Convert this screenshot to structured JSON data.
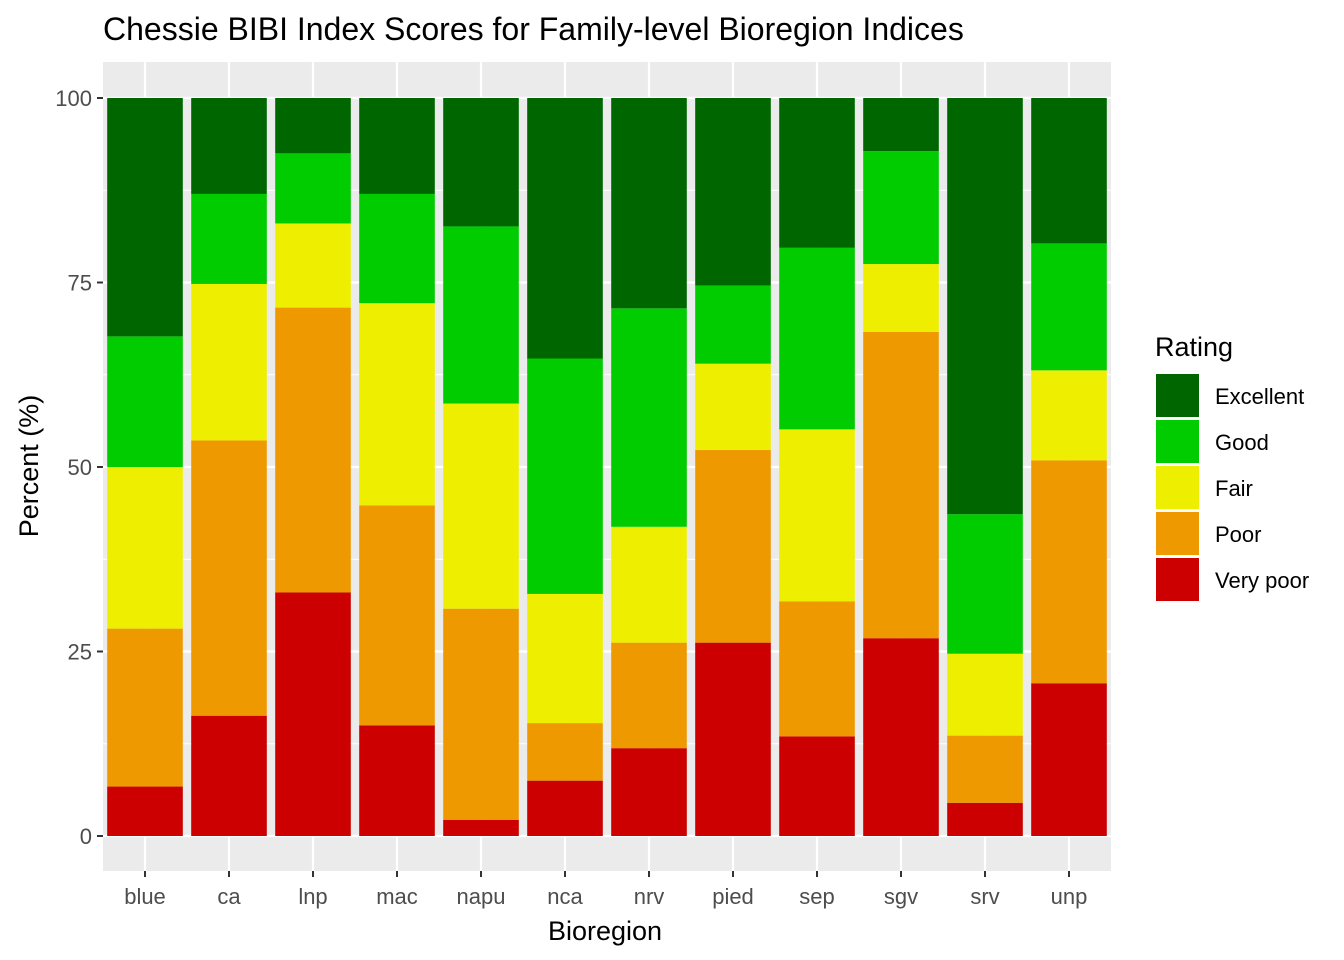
{
  "chart_data": {
    "type": "bar",
    "stacked": true,
    "title": "Chessie BIBI Index Scores for   Family-level Bioregion Indices",
    "xlabel": "Bioregion",
    "ylabel": "Percent (%)",
    "ylim": [
      0,
      100
    ],
    "yticks": [
      0,
      25,
      50,
      75,
      100
    ],
    "grid": true,
    "legend_position": "right",
    "legend_title": "Rating",
    "categories": [
      "blue",
      "ca",
      "lnp",
      "mac",
      "napu",
      "nca",
      "nrv",
      "pied",
      "sep",
      "sgv",
      "srv",
      "unp"
    ],
    "series": [
      {
        "name": "Very poor",
        "color": "#CC0000",
        "values": [
          6.7,
          16.3,
          33.0,
          15.0,
          2.2,
          7.5,
          11.9,
          26.2,
          13.5,
          26.8,
          4.5,
          20.7
        ]
      },
      {
        "name": "Poor",
        "color": "#EE9900",
        "values": [
          21.4,
          37.3,
          38.6,
          29.8,
          28.6,
          7.8,
          14.3,
          26.1,
          18.3,
          41.5,
          9.1,
          30.2
        ]
      },
      {
        "name": "Fair",
        "color": "#EEEE00",
        "values": [
          21.9,
          21.2,
          11.4,
          27.4,
          27.8,
          17.5,
          15.7,
          11.7,
          23.3,
          9.2,
          11.1,
          12.2
        ]
      },
      {
        "name": "Good",
        "color": "#00CC00",
        "values": [
          17.7,
          12.2,
          9.5,
          14.8,
          24.0,
          31.9,
          29.6,
          10.6,
          24.6,
          15.3,
          18.9,
          17.2
        ]
      },
      {
        "name": "Excellent",
        "color": "#006600",
        "values": [
          32.3,
          13.0,
          7.5,
          13.0,
          17.4,
          35.3,
          28.5,
          25.4,
          20.3,
          7.2,
          56.4,
          19.7
        ]
      }
    ]
  },
  "legend_order": [
    "Excellent",
    "Good",
    "Fair",
    "Poor",
    "Very poor"
  ],
  "colors": {
    "panel_background": "#EBEBEB",
    "grid": "#FFFFFF",
    "tick_text": "#4D4D4D"
  }
}
